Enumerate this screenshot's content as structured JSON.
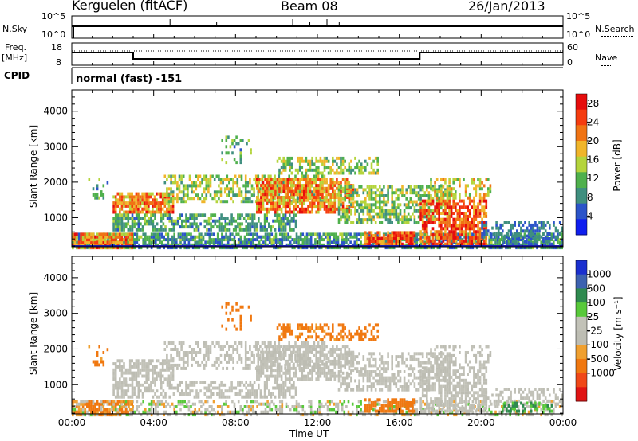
{
  "header": {
    "station": "Kerguelen (fitACF)",
    "beam": "Beam 08",
    "date": "26/Jan/2013"
  },
  "noise_panel": {
    "left_label": "N.Sky",
    "right_label": "N.Search",
    "tick_top": "10^5",
    "tick_bottom": "10^0"
  },
  "freq_panel": {
    "label_line1": "Freq.",
    "label_line2": "[MHz]",
    "left_ticks": [
      "18",
      "8"
    ],
    "right_ticks": [
      "60",
      "0"
    ],
    "right_label": "Nave"
  },
  "cpid_panel": {
    "label": "CPID",
    "mode": "normal (fast) -151"
  },
  "chart_data": [
    {
      "type": "heatmap",
      "name": "power",
      "xlabel": "Time UT",
      "ylabel": "Slant Range [km]",
      "x_ticks": [
        "00:00",
        "04:00",
        "08:00",
        "12:00",
        "16:00",
        "20:00",
        "00:00"
      ],
      "y_ticks": [
        "1000",
        "2000",
        "3000",
        "4000"
      ],
      "xlim_hours": [
        0,
        24
      ],
      "ylim_km": [
        180,
        4600
      ],
      "colorbar": {
        "label": "Power [dB]",
        "ticks": [
          "4",
          "8",
          "12",
          "16",
          "20",
          "24",
          "28"
        ],
        "range": [
          0,
          30
        ],
        "colors": [
          "#0f1eef",
          "#2b54c9",
          "#3f8f7f",
          "#4fb04c",
          "#b4d43c",
          "#f0b52a",
          "#f07414",
          "#f53c0f",
          "#e60c0c"
        ]
      },
      "ground_scatter_line_km": 180
    },
    {
      "type": "heatmap",
      "name": "velocity",
      "xlabel": "Time UT",
      "ylabel": "Slant Range [km]",
      "x_ticks": [
        "00:00",
        "04:00",
        "08:00",
        "12:00",
        "16:00",
        "20:00",
        "00:00"
      ],
      "y_ticks": [
        "1000",
        "2000",
        "3000",
        "4000"
      ],
      "xlim_hours": [
        0,
        24
      ],
      "ylim_km": [
        180,
        4600
      ],
      "colorbar": {
        "label": "Velocity [m s⁻¹]",
        "ticks": [
          "1000",
          "500",
          "100",
          "25",
          "-25",
          "-100",
          "-500",
          "-1000"
        ],
        "colors": [
          "#1a2fcf",
          "#3d62b0",
          "#2f8a4f",
          "#58c93a",
          "#c2c2b8",
          "#bdbdb3",
          "#f0a030",
          "#f07810",
          "#f04818",
          "#e01414"
        ]
      }
    }
  ]
}
